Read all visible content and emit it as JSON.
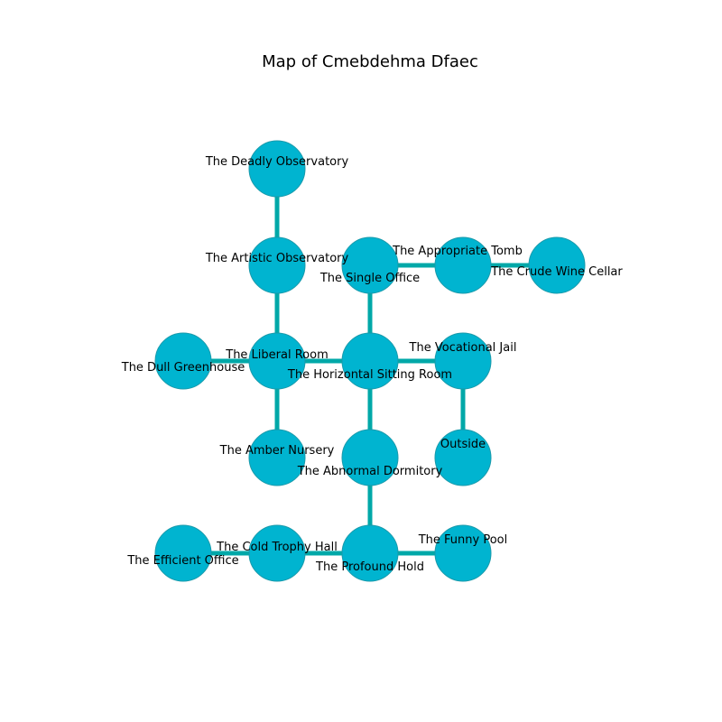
{
  "title": "Map of Cmebdehma Dfaec",
  "colors": {
    "node_fill": "#00b4d0",
    "node_stroke": "#1a9aab",
    "edge": "#00a8a8",
    "background": "#ffffff"
  },
  "nodes": [
    {
      "id": "deadly-observatory",
      "label": "The Deadly Observatory"
    },
    {
      "id": "artistic-observatory",
      "label": "The Artistic Observatory"
    },
    {
      "id": "single-office",
      "label": "The Single Office"
    },
    {
      "id": "appropriate-tomb",
      "label": "The Appropriate Tomb"
    },
    {
      "id": "crude-wine-cellar",
      "label": "The Crude Wine Cellar"
    },
    {
      "id": "dull-greenhouse",
      "label": "The Dull Greenhouse"
    },
    {
      "id": "liberal-room",
      "label": "The Liberal Room"
    },
    {
      "id": "horizontal-sitting-room",
      "label": "The Horizontal Sitting Room"
    },
    {
      "id": "vocational-jail",
      "label": "The Vocational Jail"
    },
    {
      "id": "amber-nursery",
      "label": "The Amber Nursery"
    },
    {
      "id": "abnormal-dormitory",
      "label": "The Abnormal Dormitory"
    },
    {
      "id": "outside",
      "label": "Outside"
    },
    {
      "id": "efficient-office",
      "label": "The Efficient Office"
    },
    {
      "id": "cold-trophy-hall",
      "label": "The Cold Trophy Hall"
    },
    {
      "id": "profound-hold",
      "label": "The Profound Hold"
    },
    {
      "id": "funny-pool",
      "label": "The Funny Pool"
    }
  ],
  "edges": [
    [
      "deadly-observatory",
      "artistic-observatory"
    ],
    [
      "artistic-observatory",
      "liberal-room"
    ],
    [
      "single-office",
      "appropriate-tomb"
    ],
    [
      "appropriate-tomb",
      "crude-wine-cellar"
    ],
    [
      "single-office",
      "horizontal-sitting-room"
    ],
    [
      "dull-greenhouse",
      "liberal-room"
    ],
    [
      "liberal-room",
      "horizontal-sitting-room"
    ],
    [
      "horizontal-sitting-room",
      "vocational-jail"
    ],
    [
      "liberal-room",
      "amber-nursery"
    ],
    [
      "horizontal-sitting-room",
      "abnormal-dormitory"
    ],
    [
      "vocational-jail",
      "outside"
    ],
    [
      "abnormal-dormitory",
      "profound-hold"
    ],
    [
      "efficient-office",
      "cold-trophy-hall"
    ],
    [
      "cold-trophy-hall",
      "profound-hold"
    ],
    [
      "profound-hold",
      "funny-pool"
    ]
  ]
}
